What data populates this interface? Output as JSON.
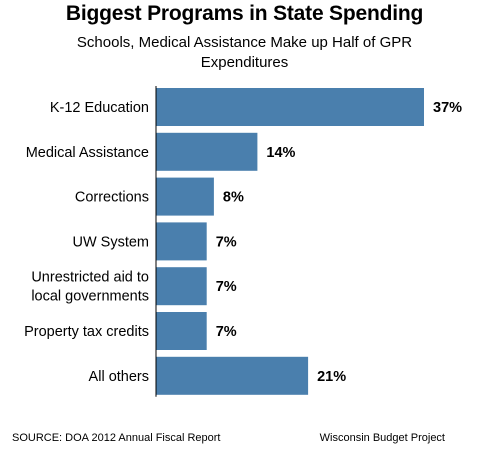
{
  "title": "Biggest Programs in State Spending",
  "subtitle": "Schools, Medical Assistance Make up Half of GPR Expenditures",
  "source": "SOURCE: DOA 2012 Annual Fiscal Report",
  "credit": "Wisconsin Budget Project",
  "colors": {
    "bar": "#4a7fad",
    "axis": "#000000"
  },
  "chart_data": {
    "type": "bar",
    "orientation": "horizontal",
    "title": "Biggest Programs in State Spending",
    "subtitle": "Schools, Medical Assistance Make up Half of GPR Expenditures",
    "categories": [
      [
        "K-12 Education"
      ],
      [
        "Medical Assistance"
      ],
      [
        "Corrections"
      ],
      [
        "UW System"
      ],
      [
        "Unrestricted aid to",
        "local governments"
      ],
      [
        "Property tax credits"
      ],
      [
        "All others"
      ]
    ],
    "values": [
      37,
      14,
      8,
      7,
      7,
      7,
      21
    ],
    "value_labels": [
      "37%",
      "14%",
      "8%",
      "7%",
      "7%",
      "7%",
      "21%"
    ],
    "unit": "%",
    "xlim": [
      0,
      37
    ],
    "grid": false,
    "legend": "none"
  }
}
